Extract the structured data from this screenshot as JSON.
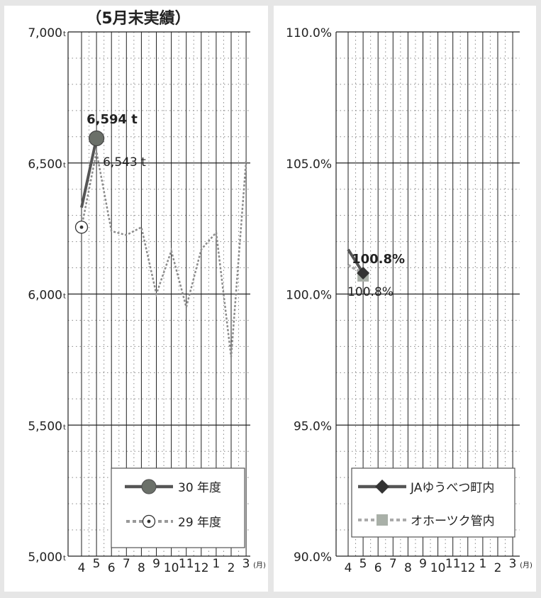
{
  "left_title": "（5月末実績）",
  "colors": {
    "series_current_volume": "#5a5a5a",
    "series_prev_volume": "#8c8c8c",
    "series_ja": "#555555",
    "series_okhotsk": "#aaaaaa",
    "marker_current": "#6b7069",
    "marker_okhotsk": "#a9b0a8"
  },
  "chart_data": [
    {
      "type": "line",
      "title": "（5月末実績）",
      "ylim": [
        5000,
        7000
      ],
      "yticks": [
        5000,
        5500,
        6000,
        6500,
        7000
      ],
      "ytick_labels": [
        "5,000",
        "5,500",
        "6,000",
        "6,500",
        "7,000"
      ],
      "y_unit": "t",
      "categories": [
        "4",
        "5",
        "6",
        "7",
        "8",
        "9",
        "10",
        "11",
        "12",
        "1",
        "2",
        "3"
      ],
      "x_unit": "(月)",
      "grid": true,
      "legend_position": "bottom-right",
      "series": [
        {
          "name": "30 年度",
          "values": [
            6330,
            6594,
            null,
            null,
            null,
            null,
            null,
            null,
            null,
            null,
            null,
            null
          ]
        },
        {
          "name": "29 年度",
          "values": [
            6255,
            6543,
            6240,
            6225,
            6255,
            6000,
            6165,
            5950,
            6170,
            6235,
            5760,
            6510
          ]
        }
      ],
      "annotations": [
        {
          "text": "6,594 t",
          "series": 0,
          "index": 1
        },
        {
          "text": "6,543 t",
          "series": 1,
          "index": 1
        }
      ]
    },
    {
      "type": "line",
      "ylim": [
        90,
        110
      ],
      "yticks": [
        90,
        95,
        100,
        105,
        110
      ],
      "ytick_labels": [
        "90.0%",
        "95.0%",
        "100.0%",
        "105.0%",
        "110.0%"
      ],
      "categories": [
        "4",
        "5",
        "6",
        "7",
        "8",
        "9",
        "10",
        "11",
        "12",
        "1",
        "2",
        "3"
      ],
      "x_unit": "(月)",
      "grid": true,
      "legend_position": "bottom-right",
      "series": [
        {
          "name": "JAゆうべつ町内",
          "values": [
            101.7,
            100.8,
            null,
            null,
            null,
            null,
            null,
            null,
            null,
            null,
            null,
            null
          ]
        },
        {
          "name": "オホーツク管内",
          "values": [
            101.1,
            100.8,
            null,
            null,
            null,
            null,
            null,
            null,
            null,
            null,
            null,
            null
          ]
        }
      ],
      "annotations": [
        {
          "text": "100.8%",
          "series": 0,
          "index": 1
        },
        {
          "text": "100.8%",
          "series": 1,
          "index": 1
        }
      ]
    }
  ]
}
